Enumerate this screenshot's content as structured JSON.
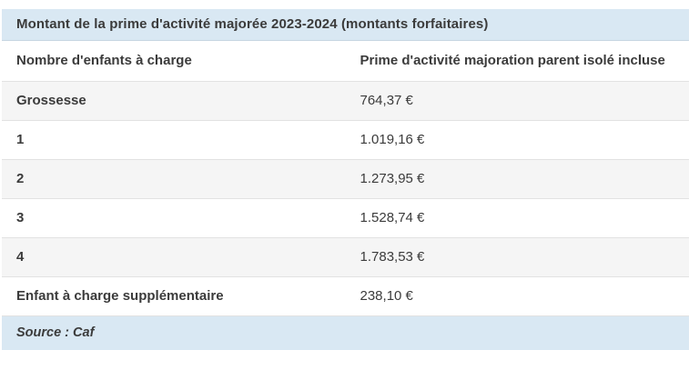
{
  "chart_data": {
    "type": "table",
    "title": "Montant de la prime d'activité majorée 2023-2024 (montants forfaitaires)",
    "columns": [
      "Nombre d'enfants à charge",
      "Prime d'activité majoration parent isolé incluse"
    ],
    "rows": [
      [
        "Grossesse",
        "764,37 €"
      ],
      [
        "1",
        "1.019,16 €"
      ],
      [
        "2",
        "1.273,95 €"
      ],
      [
        "3",
        "1.528,74 €"
      ],
      [
        "4",
        "1.783,53 €"
      ],
      [
        "Enfant à charge supplémentaire",
        "238,10 €"
      ]
    ],
    "values_numeric": [
      764.37,
      1019.16,
      1273.95,
      1528.74,
      1783.53,
      238.1
    ],
    "source": "Source : Caf",
    "layout_hints": {
      "zebra_striping": true,
      "title_position": "top-banner",
      "source_position": "bottom-banner"
    }
  },
  "colors": {
    "banner_bg": "#d9e8f3",
    "row_alt_bg": "#f5f5f5",
    "row_bg": "#ffffff",
    "border": "#e2e2e2",
    "text": "#3b3b3b"
  }
}
